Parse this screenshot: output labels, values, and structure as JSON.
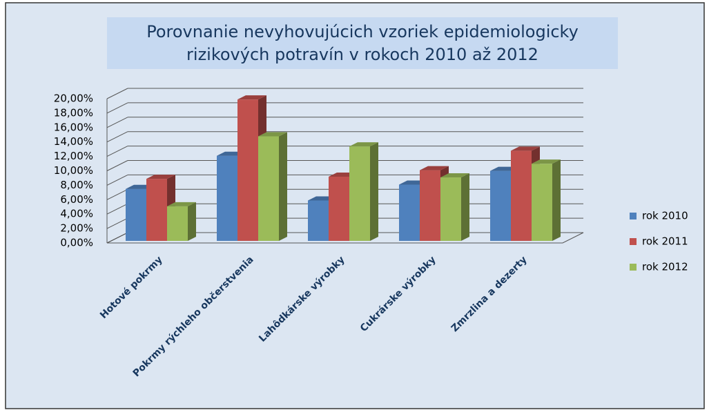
{
  "chart_data": {
    "type": "bar3d",
    "title": [
      "Porovnanie nevyhovujúcich vzoriek epidemiologicky",
      "rizikových potravín v rokoch 2010 až 2012"
    ],
    "categories": [
      "Hotové pokrmy",
      "Pokrmy rýchleho občerstvenia",
      "Lahôdkárske výrobky",
      "Cukrárske výrobky",
      "Zmrzlina a dezerty"
    ],
    "series": [
      {
        "name": "rok 2010",
        "color": "#4f81bd",
        "values": [
          7.2,
          11.8,
          5.6,
          7.8,
          9.7
        ]
      },
      {
        "name": "rok 2011",
        "color": "#c0504d",
        "values": [
          8.6,
          19.6,
          8.9,
          9.8,
          12.5
        ]
      },
      {
        "name": "rok 2012",
        "color": "#9bbb59",
        "values": [
          4.8,
          14.5,
          13.1,
          8.8,
          10.7
        ]
      }
    ],
    "ylim": [
      0,
      20
    ],
    "yticks": [
      {
        "value": 0,
        "label": "0,00%"
      },
      {
        "value": 2,
        "label": "2,00%"
      },
      {
        "value": 4,
        "label": "4,00%"
      },
      {
        "value": 6,
        "label": "6,00%"
      },
      {
        "value": 8,
        "label": "8,00%"
      },
      {
        "value": 10,
        "label": "10,00%"
      },
      {
        "value": 12,
        "label": "12,00%"
      },
      {
        "value": 14,
        "label": "14,00%"
      },
      {
        "value": 16,
        "label": "16,00%"
      },
      {
        "value": 18,
        "label": "18,00%"
      },
      {
        "value": 20,
        "label": "20,00%"
      }
    ],
    "grid": true,
    "legend": "right"
  }
}
